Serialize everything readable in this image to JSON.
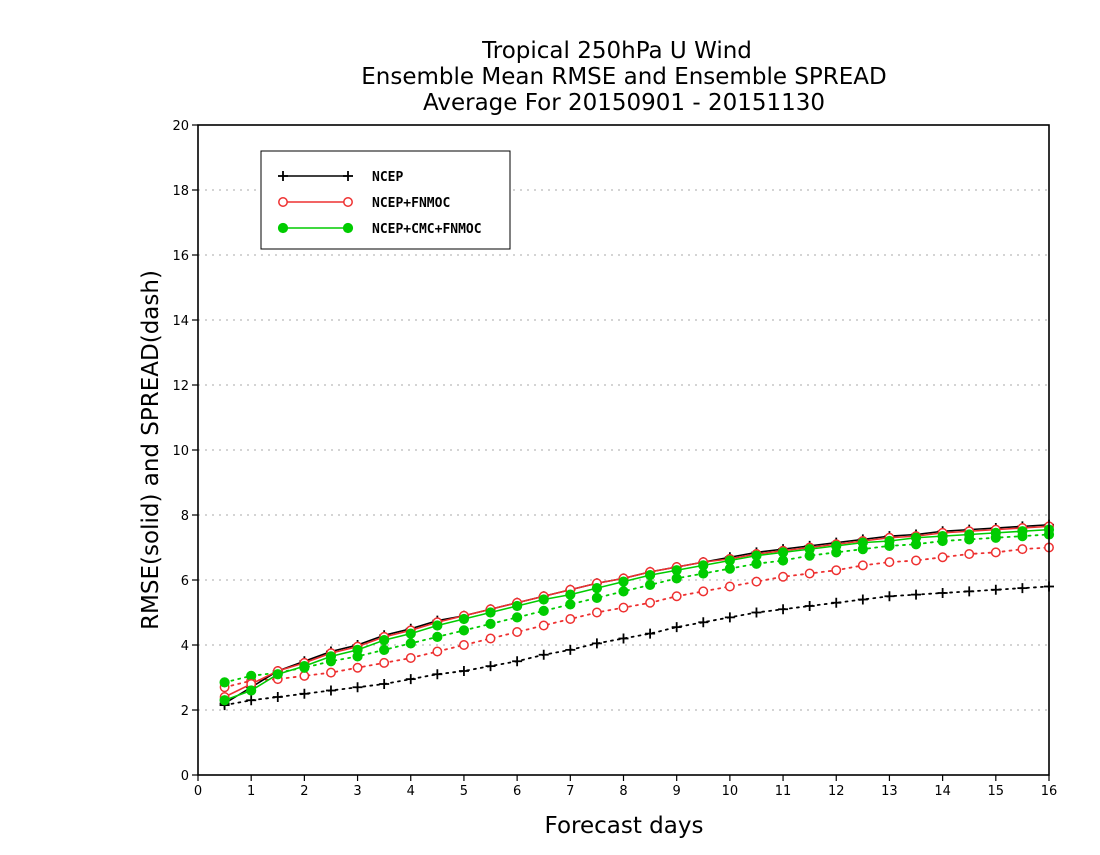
{
  "colors": {
    "NCEP": "#000000",
    "NCEP+FNMOC": "#ee3030",
    "NCEP+CMC+FNMOC": "#00cc00",
    "grid": "#aaaaaa"
  },
  "chart_data": {
    "type": "line",
    "title": [
      "Tropical 250hPa U Wind",
      "Ensemble Mean RMSE and Ensemble SPREAD",
      "Average For 20150901 - 20151130"
    ],
    "xlabel": "Forecast days",
    "ylabel": "RMSE(solid) and SPREAD(dash)",
    "xlim": [
      0,
      16
    ],
    "ylim": [
      0,
      20
    ],
    "xticks": [
      "0",
      "1",
      "2",
      "3",
      "4",
      "5",
      "6",
      "7",
      "8",
      "9",
      "10",
      "11",
      "12",
      "13",
      "14",
      "15",
      "16"
    ],
    "yticks": [
      "0",
      "2",
      "4",
      "6",
      "8",
      "10",
      "12",
      "14",
      "16",
      "18",
      "20"
    ],
    "grid": "horizontal dotted",
    "legend_position": "top-left",
    "x": [
      0.5,
      1,
      1.5,
      2,
      2.5,
      3,
      3.5,
      4,
      4.5,
      5,
      5.5,
      6,
      6.5,
      7,
      7.5,
      8,
      8.5,
      9,
      9.5,
      10,
      10.5,
      11,
      11.5,
      12,
      12.5,
      13,
      13.5,
      14,
      14.5,
      15,
      15.5,
      16
    ],
    "series": [
      {
        "name": "NCEP",
        "marker": "plus",
        "rmse": [
          2.2,
          2.7,
          3.2,
          3.5,
          3.8,
          4.0,
          4.3,
          4.5,
          4.75,
          4.9,
          5.1,
          5.3,
          5.5,
          5.7,
          5.9,
          6.05,
          6.25,
          6.4,
          6.55,
          6.7,
          6.85,
          6.95,
          7.05,
          7.15,
          7.25,
          7.35,
          7.4,
          7.5,
          7.55,
          7.6,
          7.65,
          7.7
        ],
        "spread": [
          2.15,
          2.3,
          2.4,
          2.5,
          2.6,
          2.7,
          2.8,
          2.95,
          3.1,
          3.2,
          3.35,
          3.5,
          3.7,
          3.85,
          4.05,
          4.2,
          4.35,
          4.55,
          4.7,
          4.85,
          5.0,
          5.1,
          5.2,
          5.3,
          5.4,
          5.5,
          5.55,
          5.6,
          5.65,
          5.7,
          5.75,
          5.8
        ]
      },
      {
        "name": "NCEP+FNMOC",
        "marker": "open-circle",
        "rmse": [
          2.4,
          2.8,
          3.2,
          3.45,
          3.75,
          3.95,
          4.25,
          4.45,
          4.7,
          4.9,
          5.1,
          5.3,
          5.5,
          5.7,
          5.9,
          6.05,
          6.25,
          6.4,
          6.55,
          6.65,
          6.8,
          6.9,
          7.0,
          7.1,
          7.2,
          7.3,
          7.35,
          7.45,
          7.5,
          7.55,
          7.6,
          7.65
        ],
        "spread": [
          2.7,
          2.9,
          2.95,
          3.05,
          3.15,
          3.3,
          3.45,
          3.6,
          3.8,
          4.0,
          4.2,
          4.4,
          4.6,
          4.8,
          5.0,
          5.15,
          5.3,
          5.5,
          5.65,
          5.8,
          5.95,
          6.1,
          6.2,
          6.3,
          6.45,
          6.55,
          6.6,
          6.7,
          6.8,
          6.85,
          6.95,
          7.0
        ]
      },
      {
        "name": "NCEP+CMC+FNMOC",
        "marker": "filled-circle",
        "rmse": [
          2.3,
          2.6,
          3.1,
          3.35,
          3.65,
          3.85,
          4.15,
          4.35,
          4.6,
          4.8,
          5.0,
          5.2,
          5.4,
          5.55,
          5.75,
          5.95,
          6.15,
          6.3,
          6.45,
          6.6,
          6.75,
          6.85,
          6.95,
          7.05,
          7.15,
          7.2,
          7.3,
          7.35,
          7.4,
          7.45,
          7.5,
          7.55
        ],
        "spread": [
          2.85,
          3.05,
          3.15,
          3.3,
          3.5,
          3.65,
          3.85,
          4.05,
          4.25,
          4.45,
          4.65,
          4.85,
          5.05,
          5.25,
          5.45,
          5.65,
          5.85,
          6.05,
          6.2,
          6.35,
          6.5,
          6.6,
          6.75,
          6.85,
          6.95,
          7.05,
          7.1,
          7.2,
          7.25,
          7.3,
          7.35,
          7.4
        ]
      }
    ]
  }
}
